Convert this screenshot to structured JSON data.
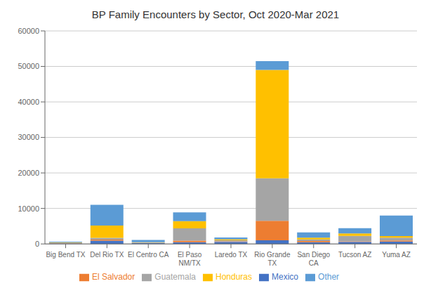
{
  "chart_data": {
    "type": "bar",
    "title": "BP Family Encounters by Sector, Oct 2020-Mar 2021",
    "categories": [
      "Big Bend TX",
      "Del Rio TX",
      "El Centro CA",
      "El Paso\nNM/TX",
      "Laredo TX",
      "Rio Grande\nTX",
      "San Diego\nCA",
      "Tucson AZ",
      "Yuma AZ"
    ],
    "series": [
      {
        "name": "Mexico",
        "color": "#4472C4",
        "values": [
          200,
          900,
          250,
          500,
          600,
          1000,
          500,
          600,
          700
        ]
      },
      {
        "name": "El Salvador",
        "color": "#ED7D31",
        "values": [
          50,
          300,
          50,
          400,
          150,
          5500,
          350,
          150,
          250
        ]
      },
      {
        "name": "Guatemala",
        "color": "#A5A5A5",
        "values": [
          100,
          500,
          100,
          3500,
          250,
          12000,
          400,
          1500,
          800
        ]
      },
      {
        "name": "Honduras",
        "color": "#FFC000",
        "values": [
          100,
          3500,
          100,
          2000,
          300,
          30500,
          500,
          700,
          450
        ]
      },
      {
        "name": "Other",
        "color": "#5B9BD5",
        "values": [
          200,
          5800,
          600,
          2500,
          500,
          2500,
          1500,
          1500,
          5800
        ]
      }
    ],
    "stacked": true,
    "ylim": [
      0,
      60000
    ],
    "yticks": [
      0,
      10000,
      20000,
      30000,
      40000,
      50000,
      60000
    ],
    "grid": true,
    "legend": "bottom"
  }
}
